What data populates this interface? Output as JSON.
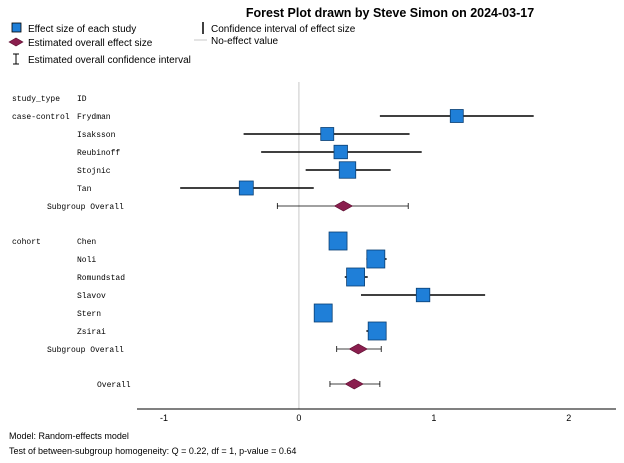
{
  "chart_data": {
    "type": "forest",
    "title": "Forest Plot drawn by Steve Simon on 2024-03-17",
    "legend": {
      "study": "Effect size of each study",
      "overall_effect": "Estimated overall effect size",
      "overall_ci": "Estimated overall confidence interval",
      "ci": "Confidence interval of effect size",
      "no_effect": "No-effect value"
    },
    "column_headers": {
      "group": "study_type",
      "id": "ID"
    },
    "xlim": [
      -1,
      2
    ],
    "xticks": [
      -1,
      0,
      1,
      2
    ],
    "null_value": 0,
    "groups": [
      {
        "name": "case-control",
        "studies": [
          {
            "id": "Frydman",
            "estimate": 1.17,
            "lower": 0.6,
            "upper": 1.74,
            "weight": 0.5
          },
          {
            "id": "Isaksson",
            "estimate": 0.21,
            "lower": -0.41,
            "upper": 0.82,
            "weight": 0.5
          },
          {
            "id": "Reubinoff",
            "estimate": 0.31,
            "lower": -0.28,
            "upper": 0.91,
            "weight": 0.55
          },
          {
            "id": "Stojnic",
            "estimate": 0.36,
            "lower": 0.05,
            "upper": 0.68,
            "weight": 0.85
          },
          {
            "id": "Tan",
            "estimate": -0.39,
            "lower": -0.88,
            "upper": 0.11,
            "weight": 0.6
          }
        ],
        "overall_label": "Subgroup Overall",
        "overall": {
          "estimate": 0.33,
          "lower": -0.16,
          "upper": 0.81
        }
      },
      {
        "name": "cohort",
        "studies": [
          {
            "id": "Chen",
            "estimate": 0.29,
            "lower": 0.24,
            "upper": 0.34,
            "weight": 1.0
          },
          {
            "id": "Noli",
            "estimate": 0.57,
            "lower": 0.5,
            "upper": 0.65,
            "weight": 1.0
          },
          {
            "id": "Romundstad",
            "estimate": 0.42,
            "lower": 0.34,
            "upper": 0.51,
            "weight": 1.0
          },
          {
            "id": "Slavov",
            "estimate": 0.92,
            "lower": 0.46,
            "upper": 1.38,
            "weight": 0.55
          },
          {
            "id": "Stern",
            "estimate": 0.18,
            "lower": 0.14,
            "upper": 0.23,
            "weight": 1.0
          },
          {
            "id": "Zsirai",
            "estimate": 0.58,
            "lower": 0.5,
            "upper": 0.64,
            "weight": 1.0
          }
        ],
        "overall_label": "Subgroup Overall",
        "overall": {
          "estimate": 0.44,
          "lower": 0.28,
          "upper": 0.61
        }
      }
    ],
    "overall_label": "Overall",
    "overall": {
      "estimate": 0.41,
      "lower": 0.23,
      "upper": 0.6
    },
    "colors": {
      "study": "#1f7fd8",
      "diamond": "#8a1e4e",
      "line": "#000000",
      "no_effect": "#c8c8c8"
    }
  },
  "footer": {
    "model": "Model: Random-effects model",
    "test": "Test of between-subgroup homogeneity: Q = 0.22, df = 1, p-value = 0.64"
  }
}
